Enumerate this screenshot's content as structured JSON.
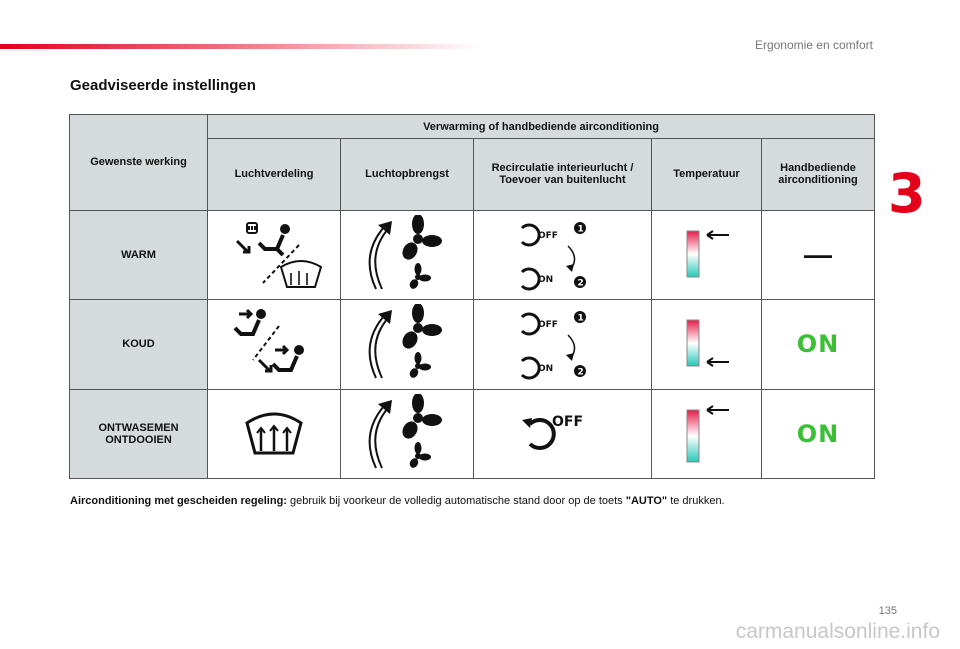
{
  "header": {
    "section_title": "Ergonomie en comfort",
    "chapter_number": "3"
  },
  "page_title": "Geadviseerde instellingen",
  "table": {
    "corner_header": "Gewenste werking",
    "group_header": "Verwarming of handbediende airconditioning",
    "columns": [
      "Luchtverdeling",
      "Luchtopbrengst",
      "Recirculatie interieurlucht / Toevoer van buitenlucht",
      "Temperatuur",
      "Handbediende airconditioning"
    ],
    "rows": [
      {
        "label": "WARM",
        "ac": "—"
      },
      {
        "label": "KOUD",
        "ac": "ON"
      },
      {
        "label": "ONTWASEMEN ONTDOOIEN",
        "ac": "ON"
      }
    ],
    "recirc_labels": {
      "off": "OFF",
      "on": "ON",
      "step1": "1",
      "step2": "2"
    }
  },
  "footnote": {
    "bold_lead": "Airconditioning met gescheiden regeling:",
    "text": " gebruik bij voorkeur de volledig automatische stand door op de toets ",
    "key": "\"AUTO\"",
    "tail": " te drukken."
  },
  "page_number": "135",
  "watermark": "carmanualsonline.info"
}
